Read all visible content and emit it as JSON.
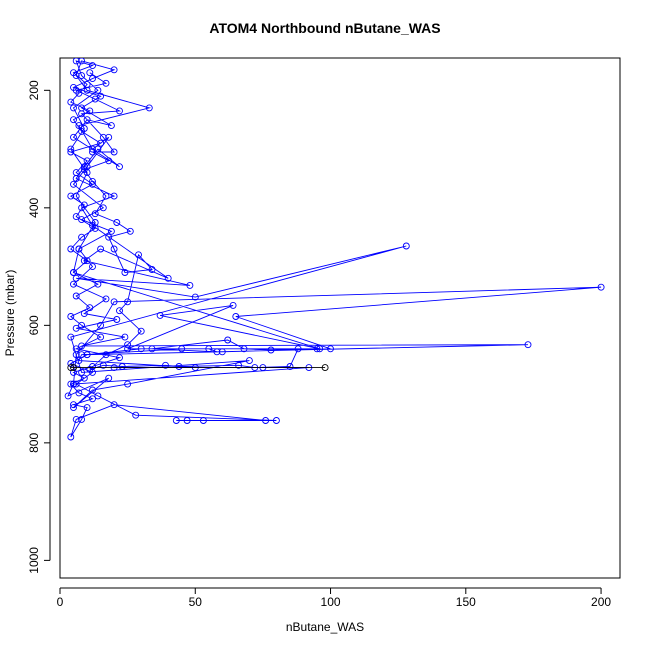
{
  "chart_data": {
    "type": "line",
    "title": "ATOM4 Northbound nButane_WAS",
    "xlabel": "nButane_WAS",
    "ylabel": "Pressure (mbar)",
    "xlim": [
      0,
      207
    ],
    "ylim": [
      1030,
      145
    ],
    "y_reversed": true,
    "x_ticks": [
      0,
      50,
      100,
      150,
      200
    ],
    "y_ticks": [
      200,
      400,
      600,
      800,
      1000
    ],
    "x_tick_labels": [
      "0",
      "50",
      "100",
      "150",
      "200"
    ],
    "y_tick_labels": [
      "200",
      "400",
      "600",
      "800",
      "1000"
    ],
    "grid": false,
    "legend": "none",
    "colors": {
      "series": "#0000ff",
      "highlight": "#000000"
    },
    "series": [
      {
        "values": [
          [
            5,
            700
          ],
          [
            6,
            650
          ],
          [
            15,
            600
          ],
          [
            20,
            560
          ],
          [
            200,
            535
          ],
          [
            65,
            585
          ],
          [
            100,
            640
          ],
          [
            60,
            645
          ],
          [
            10,
            650
          ],
          [
            30,
            640
          ],
          [
            95,
            640
          ],
          [
            45,
            640
          ],
          [
            8,
            650
          ],
          [
            7,
            660
          ],
          [
            50,
            672
          ],
          [
            75,
            672
          ],
          [
            20,
            672
          ],
          [
            92,
            672
          ],
          [
            5,
            700
          ],
          [
            3,
            720
          ],
          [
            18,
            690
          ],
          [
            5,
            740
          ],
          [
            12,
            710
          ],
          [
            25,
            700
          ],
          [
            70,
            660
          ],
          [
            8,
            680
          ],
          [
            4,
            620
          ],
          [
            128,
            465
          ],
          [
            50,
            552
          ],
          [
            6,
            520
          ],
          [
            48,
            532
          ],
          [
            9,
            490
          ],
          [
            15,
            470
          ],
          [
            40,
            520
          ],
          [
            12,
            430
          ],
          [
            8,
            400
          ],
          [
            20,
            380
          ],
          [
            6,
            350
          ],
          [
            9,
            330
          ],
          [
            14,
            300
          ],
          [
            22,
            330
          ],
          [
            5,
            280
          ],
          [
            10,
            250
          ],
          [
            19,
            260
          ],
          [
            8,
            230
          ],
          [
            15,
            210
          ],
          [
            5,
            195
          ],
          [
            12,
            180
          ],
          [
            20,
            165
          ],
          [
            8,
            150
          ],
          [
            6,
            175
          ],
          [
            10,
            200
          ],
          [
            33,
            230
          ],
          [
            7,
            260
          ],
          [
            12,
            300
          ],
          [
            18,
            280
          ],
          [
            10,
            330
          ],
          [
            5,
            360
          ],
          [
            16,
            400
          ],
          [
            8,
            420
          ],
          [
            19,
            440
          ],
          [
            7,
            470
          ],
          [
            12,
            500
          ],
          [
            5,
            530
          ],
          [
            17,
            555
          ],
          [
            9,
            580
          ],
          [
            21,
            590
          ],
          [
            6,
            605
          ],
          [
            24,
            620
          ],
          [
            8,
            635
          ],
          [
            173,
            633
          ],
          [
            10,
            650
          ],
          [
            4,
            665
          ],
          [
            12,
            680
          ],
          [
            6,
            700
          ],
          [
            14,
            720
          ],
          [
            28,
            753
          ],
          [
            80,
            762
          ],
          [
            43,
            762
          ],
          [
            47,
            762
          ],
          [
            53,
            762
          ],
          [
            76,
            762
          ],
          [
            20,
            735
          ],
          [
            6,
            760
          ],
          [
            4,
            790
          ],
          [
            8,
            760
          ],
          [
            10,
            740
          ],
          [
            5,
            735
          ],
          [
            12,
            725
          ],
          [
            7,
            715
          ],
          [
            4,
            700
          ],
          [
            9,
            690
          ],
          [
            5,
            680
          ],
          [
            12,
            670
          ],
          [
            22,
            655
          ],
          [
            6,
            640
          ],
          [
            15,
            620
          ],
          [
            8,
            600
          ],
          [
            4,
            585
          ],
          [
            11,
            570
          ],
          [
            6,
            550
          ],
          [
            14,
            530
          ],
          [
            5,
            510
          ],
          [
            10,
            490
          ],
          [
            4,
            470
          ],
          [
            8,
            450
          ],
          [
            13,
            435
          ],
          [
            6,
            415
          ],
          [
            9,
            395
          ],
          [
            4,
            380
          ],
          [
            12,
            360
          ],
          [
            6,
            340
          ],
          [
            10,
            320
          ],
          [
            4,
            305
          ],
          [
            15,
            290
          ],
          [
            8,
            270
          ],
          [
            5,
            250
          ],
          [
            11,
            235
          ],
          [
            4,
            220
          ],
          [
            7,
            205
          ],
          [
            10,
            190
          ],
          [
            5,
            170
          ],
          [
            12,
            158
          ],
          [
            6,
            150
          ],
          [
            8,
            175
          ],
          [
            14,
            200
          ],
          [
            5,
            230
          ],
          [
            9,
            265
          ],
          [
            4,
            300
          ],
          [
            10,
            340
          ],
          [
            6,
            380
          ],
          [
            13,
            425
          ],
          [
            7,
            470
          ],
          [
            5,
            510
          ],
          [
            96,
            640
          ],
          [
            37,
            583
          ],
          [
            64,
            566
          ],
          [
            25,
            640
          ],
          [
            55,
            640
          ],
          [
            58,
            645
          ],
          [
            34,
            640
          ],
          [
            62,
            625
          ],
          [
            68,
            640
          ],
          [
            78,
            642
          ],
          [
            88,
            640
          ],
          [
            85,
            670
          ],
          [
            72,
            672
          ],
          [
            66,
            668
          ],
          [
            44,
            670
          ],
          [
            39,
            668
          ],
          [
            23,
            670
          ],
          [
            16,
            668
          ],
          [
            11,
            675
          ],
          [
            17,
            650
          ],
          [
            25,
            633
          ],
          [
            30,
            610
          ],
          [
            22,
            575
          ],
          [
            25,
            560
          ],
          [
            29,
            480
          ],
          [
            34,
            505
          ],
          [
            24,
            510
          ],
          [
            20,
            470
          ],
          [
            18,
            450
          ],
          [
            26,
            440
          ],
          [
            21,
            425
          ],
          [
            13,
            410
          ],
          [
            17,
            380
          ],
          [
            12,
            355
          ],
          [
            9,
            335
          ],
          [
            18,
            320
          ],
          [
            12,
            305
          ],
          [
            20,
            305
          ],
          [
            16,
            280
          ],
          [
            8,
            240
          ],
          [
            22,
            235
          ],
          [
            13,
            215
          ],
          [
            6,
            200
          ],
          [
            17,
            188
          ],
          [
            11,
            170
          ]
        ]
      },
      {
        "values": [
          [
            4,
            672
          ],
          [
            5,
            672
          ],
          [
            98,
            672
          ]
        ]
      }
    ]
  }
}
